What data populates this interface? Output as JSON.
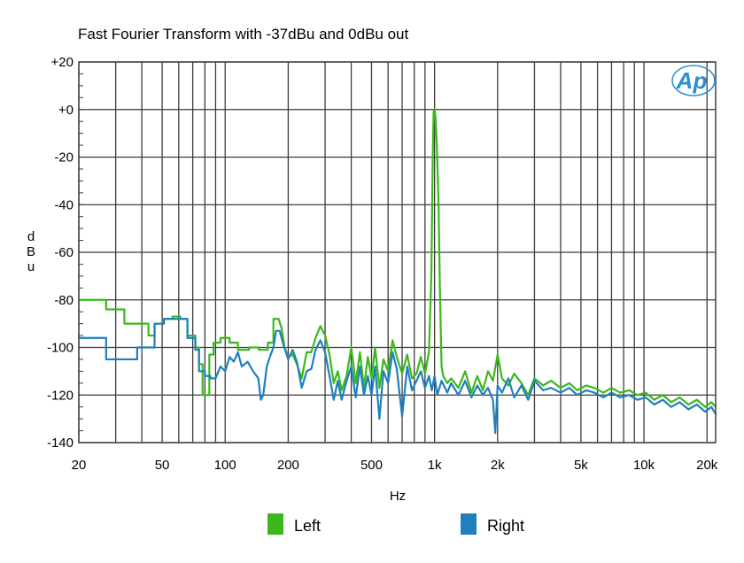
{
  "chart_data": {
    "type": "line",
    "title": "Fast Fourier Transform with -37dBu and 0dBu out",
    "xlabel": "Hz",
    "ylabel": "dBu",
    "x_scale": "log",
    "xlim": [
      20,
      22000
    ],
    "ylim": [
      -140,
      20
    ],
    "x_ticks": [
      {
        "value": 20,
        "label": "20"
      },
      {
        "value": 50,
        "label": "50"
      },
      {
        "value": 100,
        "label": "100"
      },
      {
        "value": 200,
        "label": "200"
      },
      {
        "value": 500,
        "label": "500"
      },
      {
        "value": 1000,
        "label": "1k"
      },
      {
        "value": 2000,
        "label": "2k"
      },
      {
        "value": 5000,
        "label": "5k"
      },
      {
        "value": 10000,
        "label": "10k"
      },
      {
        "value": 20000,
        "label": "20k"
      }
    ],
    "y_ticks": [
      {
        "value": 20,
        "label": "+20"
      },
      {
        "value": 0,
        "label": "+0"
      },
      {
        "value": -20,
        "label": "-20"
      },
      {
        "value": -40,
        "label": "-40"
      },
      {
        "value": -60,
        "label": "-60"
      },
      {
        "value": -80,
        "label": "-80"
      },
      {
        "value": -100,
        "label": "-100"
      },
      {
        "value": -120,
        "label": "-120"
      },
      {
        "value": -140,
        "label": "-140"
      }
    ],
    "grid": true,
    "legend_position": "bottom",
    "logo_text": "Ap",
    "series": [
      {
        "name": "Left",
        "color": "#3bb81a",
        "points": [
          [
            20,
            -80
          ],
          [
            27,
            -80
          ],
          [
            27,
            -84
          ],
          [
            33,
            -84
          ],
          [
            33,
            -90
          ],
          [
            43,
            -90
          ],
          [
            43,
            -95
          ],
          [
            46,
            -95
          ],
          [
            46,
            -90
          ],
          [
            51,
            -90
          ],
          [
            51,
            -88
          ],
          [
            56,
            -88
          ],
          [
            56,
            -87
          ],
          [
            61,
            -87
          ],
          [
            61,
            -88
          ],
          [
            66,
            -88
          ],
          [
            66,
            -95
          ],
          [
            72,
            -95
          ],
          [
            72,
            -100
          ],
          [
            75,
            -100
          ],
          [
            75,
            -107
          ],
          [
            78,
            -107
          ],
          [
            78,
            -120
          ],
          [
            84,
            -120
          ],
          [
            84,
            -103
          ],
          [
            88,
            -103
          ],
          [
            88,
            -98
          ],
          [
            95,
            -98
          ],
          [
            95,
            -96
          ],
          [
            105,
            -96
          ],
          [
            105,
            -98
          ],
          [
            115,
            -98
          ],
          [
            115,
            -101
          ],
          [
            130,
            -101
          ],
          [
            130,
            -100
          ],
          [
            145,
            -100
          ],
          [
            145,
            -101
          ],
          [
            160,
            -101
          ],
          [
            160,
            -98
          ],
          [
            170,
            -98
          ],
          [
            170,
            -88
          ],
          [
            176,
            -88
          ],
          [
            180,
            -88
          ],
          [
            186,
            -92
          ],
          [
            192,
            -100
          ],
          [
            200,
            -104
          ],
          [
            210,
            -103
          ],
          [
            220,
            -107
          ],
          [
            232,
            -113
          ],
          [
            245,
            -102
          ],
          [
            258,
            -102
          ],
          [
            270,
            -96
          ],
          [
            285,
            -91
          ],
          [
            300,
            -95
          ],
          [
            315,
            -103
          ],
          [
            330,
            -115
          ],
          [
            345,
            -110
          ],
          [
            360,
            -118
          ],
          [
            380,
            -112
          ],
          [
            400,
            -100
          ],
          [
            420,
            -115
          ],
          [
            440,
            -102
          ],
          [
            460,
            -117
          ],
          [
            480,
            -104
          ],
          [
            500,
            -113
          ],
          [
            520,
            -100
          ],
          [
            545,
            -117
          ],
          [
            570,
            -105
          ],
          [
            600,
            -110
          ],
          [
            630,
            -97
          ],
          [
            660,
            -104
          ],
          [
            700,
            -111
          ],
          [
            740,
            -103
          ],
          [
            780,
            -113
          ],
          [
            820,
            -111
          ],
          [
            860,
            -104
          ],
          [
            900,
            -111
          ],
          [
            940,
            -102
          ],
          [
            965,
            -70
          ],
          [
            980,
            -20
          ],
          [
            990,
            -1
          ],
          [
            1000,
            0
          ],
          [
            1010,
            -3
          ],
          [
            1025,
            -15
          ],
          [
            1045,
            -40
          ],
          [
            1060,
            -75
          ],
          [
            1080,
            -108
          ],
          [
            1100,
            -112
          ],
          [
            1150,
            -115
          ],
          [
            1200,
            -113
          ],
          [
            1300,
            -117
          ],
          [
            1400,
            -110
          ],
          [
            1500,
            -119
          ],
          [
            1600,
            -112
          ],
          [
            1700,
            -118
          ],
          [
            1800,
            -110
          ],
          [
            1900,
            -114
          ],
          [
            2000,
            -103
          ],
          [
            2100,
            -113
          ],
          [
            2250,
            -116
          ],
          [
            2400,
            -111
          ],
          [
            2600,
            -115
          ],
          [
            2800,
            -120
          ],
          [
            3000,
            -113
          ],
          [
            3300,
            -116
          ],
          [
            3600,
            -114
          ],
          [
            4000,
            -117
          ],
          [
            4400,
            -115
          ],
          [
            4800,
            -118
          ],
          [
            5300,
            -116
          ],
          [
            5800,
            -117
          ],
          [
            6400,
            -119
          ],
          [
            7000,
            -117
          ],
          [
            7700,
            -119
          ],
          [
            8500,
            -118
          ],
          [
            9300,
            -120
          ],
          [
            10200,
            -119
          ],
          [
            11200,
            -122
          ],
          [
            12300,
            -120
          ],
          [
            13500,
            -123
          ],
          [
            14800,
            -121
          ],
          [
            16300,
            -124
          ],
          [
            17900,
            -122
          ],
          [
            19600,
            -125
          ],
          [
            21000,
            -123
          ],
          [
            22000,
            -125
          ]
        ]
      },
      {
        "name": "Right",
        "color": "#1f80be",
        "points": [
          [
            20,
            -96
          ],
          [
            27,
            -96
          ],
          [
            27,
            -105
          ],
          [
            33,
            -105
          ],
          [
            33,
            -105
          ],
          [
            38,
            -105
          ],
          [
            38,
            -100
          ],
          [
            46,
            -100
          ],
          [
            46,
            -90
          ],
          [
            51,
            -90
          ],
          [
            51,
            -88
          ],
          [
            56,
            -88
          ],
          [
            56,
            -88
          ],
          [
            61,
            -88
          ],
          [
            61,
            -88
          ],
          [
            66,
            -88
          ],
          [
            66,
            -96
          ],
          [
            72,
            -96
          ],
          [
            72,
            -101
          ],
          [
            75,
            -101
          ],
          [
            75,
            -110
          ],
          [
            80,
            -110
          ],
          [
            80,
            -112
          ],
          [
            85,
            -112
          ],
          [
            85,
            -113
          ],
          [
            90,
            -113
          ],
          [
            95,
            -108
          ],
          [
            100,
            -110
          ],
          [
            105,
            -104
          ],
          [
            110,
            -106
          ],
          [
            115,
            -102
          ],
          [
            120,
            -108
          ],
          [
            128,
            -106
          ],
          [
            136,
            -110
          ],
          [
            144,
            -113
          ],
          [
            148,
            -122
          ],
          [
            152,
            -120
          ],
          [
            158,
            -108
          ],
          [
            165,
            -103
          ],
          [
            170,
            -100
          ],
          [
            175,
            -93
          ],
          [
            182,
            -93
          ],
          [
            190,
            -99
          ],
          [
            200,
            -105
          ],
          [
            210,
            -101
          ],
          [
            220,
            -106
          ],
          [
            232,
            -117
          ],
          [
            245,
            -110
          ],
          [
            258,
            -109
          ],
          [
            270,
            -101
          ],
          [
            285,
            -97
          ],
          [
            300,
            -102
          ],
          [
            315,
            -112
          ],
          [
            330,
            -122
          ],
          [
            345,
            -114
          ],
          [
            360,
            -122
          ],
          [
            380,
            -114
          ],
          [
            400,
            -108
          ],
          [
            420,
            -121
          ],
          [
            440,
            -108
          ],
          [
            460,
            -120
          ],
          [
            480,
            -112
          ],
          [
            500,
            -120
          ],
          [
            520,
            -108
          ],
          [
            545,
            -130
          ],
          [
            570,
            -110
          ],
          [
            600,
            -115
          ],
          [
            630,
            -102
          ],
          [
            660,
            -109
          ],
          [
            700,
            -129
          ],
          [
            740,
            -108
          ],
          [
            780,
            -118
          ],
          [
            820,
            -114
          ],
          [
            860,
            -110
          ],
          [
            900,
            -117
          ],
          [
            940,
            -112
          ],
          [
            970,
            -118
          ],
          [
            1000,
            -112
          ],
          [
            1030,
            -120
          ],
          [
            1080,
            -114
          ],
          [
            1150,
            -119
          ],
          [
            1200,
            -115
          ],
          [
            1300,
            -120
          ],
          [
            1400,
            -114
          ],
          [
            1500,
            -121
          ],
          [
            1600,
            -116
          ],
          [
            1700,
            -120
          ],
          [
            1800,
            -117
          ],
          [
            1900,
            -122
          ],
          [
            1950,
            -136
          ],
          [
            2000,
            -116
          ],
          [
            2100,
            -119
          ],
          [
            2250,
            -113
          ],
          [
            2400,
            -121
          ],
          [
            2600,
            -116
          ],
          [
            2800,
            -122
          ],
          [
            3000,
            -114
          ],
          [
            3300,
            -118
          ],
          [
            3600,
            -117
          ],
          [
            4000,
            -119
          ],
          [
            4400,
            -117
          ],
          [
            4800,
            -120
          ],
          [
            5300,
            -118
          ],
          [
            5800,
            -119
          ],
          [
            6400,
            -121
          ],
          [
            7000,
            -119
          ],
          [
            7700,
            -121
          ],
          [
            8500,
            -120
          ],
          [
            9300,
            -122
          ],
          [
            10200,
            -121
          ],
          [
            11200,
            -124
          ],
          [
            12300,
            -122
          ],
          [
            13500,
            -125
          ],
          [
            14800,
            -123
          ],
          [
            16300,
            -126
          ],
          [
            17900,
            -124
          ],
          [
            19600,
            -127
          ],
          [
            21000,
            -125
          ],
          [
            22000,
            -128
          ]
        ]
      }
    ]
  }
}
